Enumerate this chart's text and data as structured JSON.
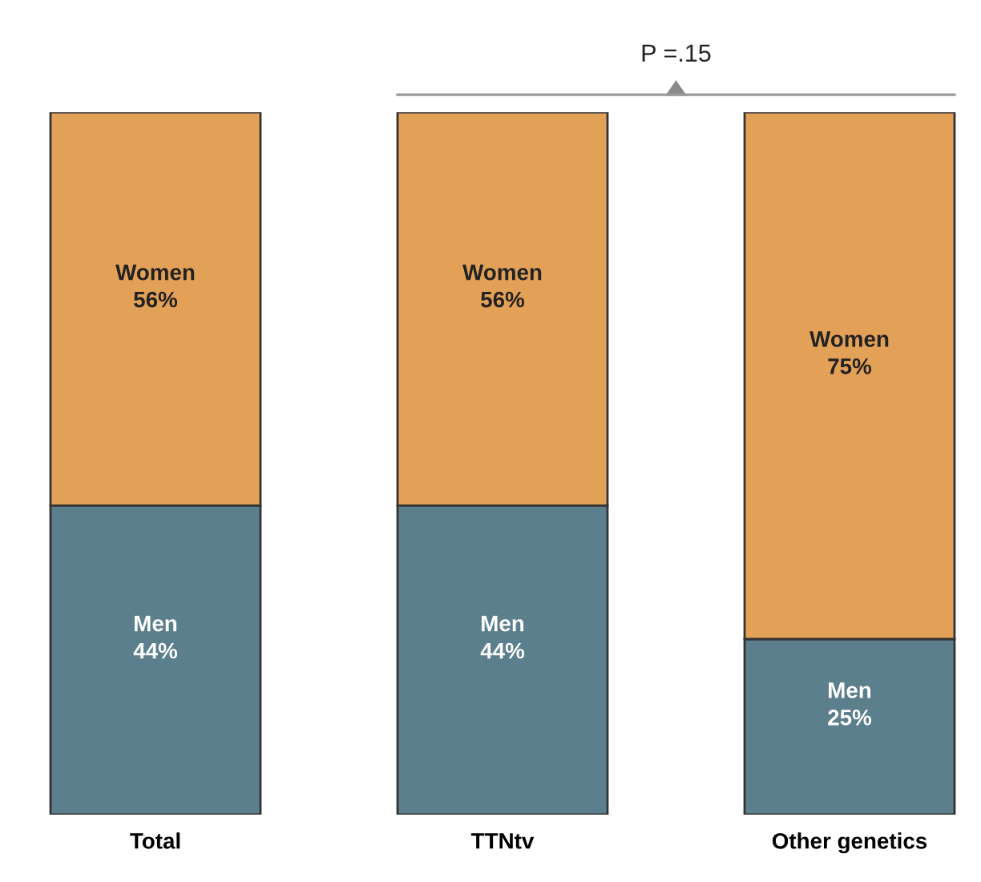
{
  "chart_data": {
    "type": "bar",
    "stacked": true,
    "categories": [
      "Total",
      "TTNtv",
      "Other genetics"
    ],
    "series": [
      {
        "name": "Men",
        "color": "#5b7f8c",
        "values": [
          44,
          44,
          25
        ],
        "value_labels": [
          "44%",
          "44%",
          "25%"
        ]
      },
      {
        "name": "Women",
        "color": "#e3a057",
        "values": [
          56,
          56,
          75
        ],
        "value_labels": [
          "56%",
          "56%",
          "75%"
        ]
      }
    ],
    "ylim": [
      0,
      100
    ],
    "tick_labels": "x",
    "grid": false,
    "legend": false,
    "annotations": [
      "P =.15"
    ]
  }
}
